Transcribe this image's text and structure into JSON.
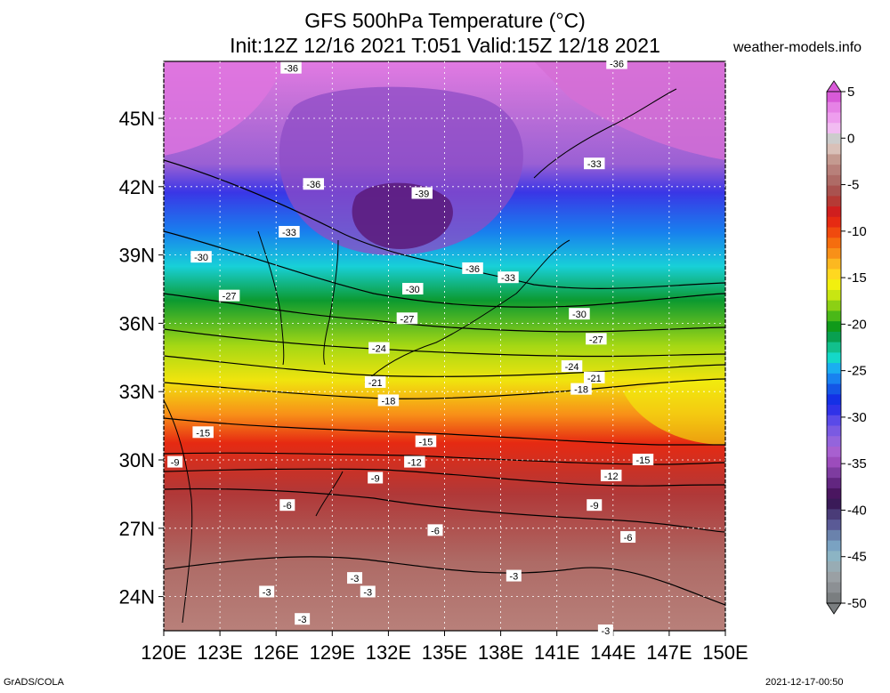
{
  "header": {
    "title_line1": "GFS 500hPa Temperature (°C)",
    "title_line2": "Init:12Z 12/16 2021 T:051 Valid:15Z 12/18 2021",
    "site": "weather-models.info"
  },
  "footer": {
    "left": "GrADS/COLA",
    "right": "2021-12-17-00:50"
  },
  "map": {
    "lon_labels": [
      "120E",
      "123E",
      "126E",
      "129E",
      "132E",
      "135E",
      "138E",
      "141E",
      "144E",
      "147E",
      "150E"
    ],
    "lat_labels": [
      "45N",
      "42N",
      "39N",
      "36N",
      "33N",
      "30N",
      "27N",
      "24N"
    ],
    "lon_range": [
      120,
      150
    ],
    "lat_range": [
      22.5,
      47.5
    ],
    "contour_interval_c": 3,
    "contour_labels": [
      {
        "text": "-36",
        "lon": 126.8,
        "lat": 47.2
      },
      {
        "text": "-36",
        "lon": 144.2,
        "lat": 47.4
      },
      {
        "text": "-36",
        "lon": 128.0,
        "lat": 42.1
      },
      {
        "text": "-39",
        "lon": 133.8,
        "lat": 41.7
      },
      {
        "text": "-33",
        "lon": 143.0,
        "lat": 43.0
      },
      {
        "text": "-33",
        "lon": 126.7,
        "lat": 40.0
      },
      {
        "text": "-30",
        "lon": 122.0,
        "lat": 38.9
      },
      {
        "text": "-36",
        "lon": 136.5,
        "lat": 38.4
      },
      {
        "text": "-33",
        "lon": 138.4,
        "lat": 38.0
      },
      {
        "text": "-27",
        "lon": 123.5,
        "lat": 37.2
      },
      {
        "text": "-30",
        "lon": 133.3,
        "lat": 37.5
      },
      {
        "text": "-30",
        "lon": 142.2,
        "lat": 36.4
      },
      {
        "text": "-27",
        "lon": 133.0,
        "lat": 36.2
      },
      {
        "text": "-27",
        "lon": 143.1,
        "lat": 35.3
      },
      {
        "text": "-24",
        "lon": 131.5,
        "lat": 34.9
      },
      {
        "text": "-24",
        "lon": 141.8,
        "lat": 34.1
      },
      {
        "text": "-21",
        "lon": 143.0,
        "lat": 33.6
      },
      {
        "text": "-21",
        "lon": 131.3,
        "lat": 33.4
      },
      {
        "text": "-18",
        "lon": 142.3,
        "lat": 33.1
      },
      {
        "text": "-18",
        "lon": 132.0,
        "lat": 32.6
      },
      {
        "text": "-15",
        "lon": 122.1,
        "lat": 31.2
      },
      {
        "text": "-15",
        "lon": 134.0,
        "lat": 30.8
      },
      {
        "text": "-15",
        "lon": 145.6,
        "lat": 30.0
      },
      {
        "text": "-12",
        "lon": 133.4,
        "lat": 29.9
      },
      {
        "text": "-9",
        "lon": 120.6,
        "lat": 29.9
      },
      {
        "text": "-12",
        "lon": 143.9,
        "lat": 29.3
      },
      {
        "text": "-9",
        "lon": 131.3,
        "lat": 29.2
      },
      {
        "text": "-9",
        "lon": 143.0,
        "lat": 28.0
      },
      {
        "text": "-6",
        "lon": 126.6,
        "lat": 28.0
      },
      {
        "text": "-6",
        "lon": 134.5,
        "lat": 26.9
      },
      {
        "text": "-6",
        "lon": 144.8,
        "lat": 26.6
      },
      {
        "text": "-3",
        "lon": 138.7,
        "lat": 24.9
      },
      {
        "text": "-3",
        "lon": 130.2,
        "lat": 24.8
      },
      {
        "text": "-3",
        "lon": 125.5,
        "lat": 24.2
      },
      {
        "text": "-3",
        "lon": 130.9,
        "lat": 24.2
      },
      {
        "text": "-3",
        "lon": 127.4,
        "lat": 23.0
      },
      {
        "text": "-3",
        "lon": 143.6,
        "lat": 22.5
      }
    ]
  },
  "colorbar": {
    "tick_labels": [
      "5",
      "0",
      "-5",
      "-10",
      "-15",
      "-20",
      "-25",
      "-30",
      "-35",
      "-40",
      "-45",
      "-50"
    ],
    "colors": [
      "#d85ad8",
      "#e682e6",
      "#ee9eee",
      "#f2bcf2",
      "#cccccc",
      "#d9c0b8",
      "#c49a90",
      "#b8807a",
      "#ae6b66",
      "#a9524f",
      "#b53a35",
      "#d01e1e",
      "#e62a12",
      "#f04a0e",
      "#f56d0e",
      "#f89018",
      "#fcb820",
      "#ffd820",
      "#f2f00e",
      "#c8e612",
      "#8cd014",
      "#4ab818",
      "#109a1a",
      "#08a050",
      "#12c08c",
      "#14d8c8",
      "#1aaef0",
      "#1882f0",
      "#1456e6",
      "#1430e6",
      "#3032e8",
      "#5a4ae8",
      "#7a5ae2",
      "#9464dc",
      "#a860d0",
      "#9c4cbc",
      "#7e3ca0",
      "#622680",
      "#4a1660",
      "#3a1a58",
      "#4a3c78",
      "#5a5a96",
      "#6a82ac",
      "#7aa2c2",
      "#8cb4c4",
      "#98acb4",
      "#9aa0a4",
      "#8c9094",
      "#7a7e80"
    ]
  }
}
